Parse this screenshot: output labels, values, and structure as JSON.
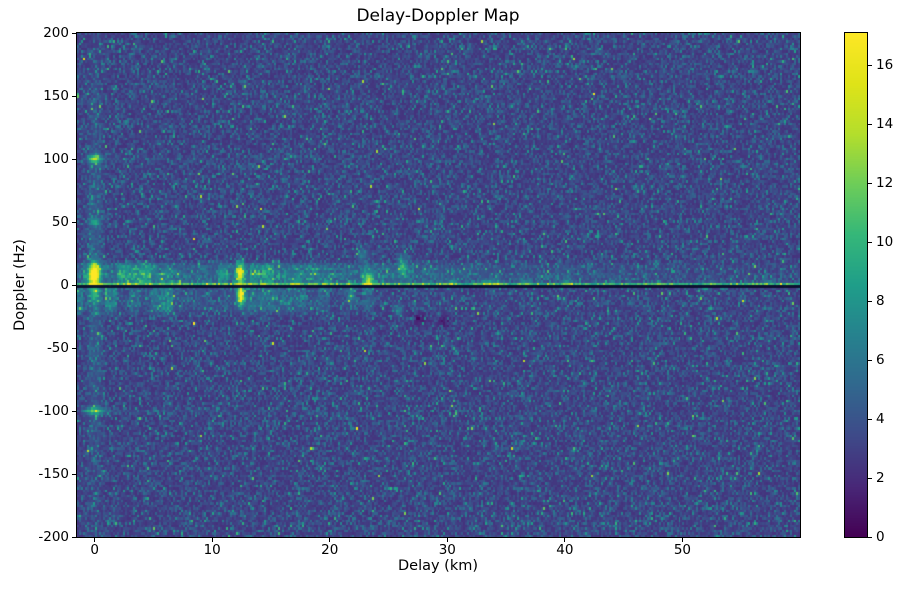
{
  "chart_data": {
    "type": "heatmap",
    "title": "Delay-Doppler Map",
    "xlabel": "Delay (km)",
    "ylabel": "Doppler (Hz)",
    "x_range": [
      -1.5,
      60
    ],
    "y_range": [
      -200,
      200
    ],
    "x_ticks": [
      0,
      10,
      20,
      30,
      40,
      50
    ],
    "y_ticks": [
      -200,
      -150,
      -100,
      -50,
      0,
      50,
      100,
      150,
      200
    ],
    "colorbar": {
      "vmin": 0,
      "vmax": 17.1,
      "ticks": [
        0,
        2,
        4,
        6,
        8,
        10,
        12,
        14,
        16
      ],
      "colormap": "viridis"
    },
    "grid": {
      "nx": 363,
      "ny": 202
    },
    "noise": {
      "seed": 42,
      "base": 2.2,
      "exp_scale": 1.35
    },
    "features": {
      "zero_line": {
        "doppler_hz": -0.7,
        "color": "#0a0c2a"
      },
      "bright_line": {
        "doppler_hz": 1.3,
        "half_width_hz": 1.0,
        "amplitude": 6.0
      },
      "vertical_stripe": {
        "delay_km": 0,
        "sigma_km": 0.45,
        "amplitude": 1.6
      },
      "upper_band": {
        "hz_lo": -0.5,
        "hz_hi": 19.5,
        "amplitude": 3.6
      },
      "lower_band": {
        "hz_lo": -26,
        "hz_hi": 0.5,
        "amplitude": 2.4
      },
      "doppler_tails": [
        {
          "hz": 100,
          "amplitude": 0.8,
          "km_end": 20
        },
        {
          "hz": -100,
          "amplitude": 1.0,
          "km_end": 25
        }
      ],
      "blobs": [
        {
          "km": 0,
          "hz": 9,
          "sx": 0.32,
          "sy": 6,
          "amp": 14
        },
        {
          "km": 0,
          "hz": -6,
          "sx": 0.3,
          "sy": 5,
          "amp": 5
        },
        {
          "km": 12.4,
          "hz": 10,
          "sx": 0.22,
          "sy": 5.5,
          "amp": 12
        },
        {
          "km": 12.45,
          "hz": -8,
          "sx": 0.22,
          "sy": 5.5,
          "amp": 13
        },
        {
          "km": 0,
          "hz": 100,
          "sx": 0.38,
          "sy": 2.2,
          "amp": 10
        },
        {
          "km": 0,
          "hz": 50,
          "sx": 0.3,
          "sy": 2.2,
          "amp": 5
        },
        {
          "km": 0,
          "hz": -100,
          "sx": 0.55,
          "sy": 1.8,
          "amp": 7.5
        },
        {
          "km": 23.3,
          "hz": 4,
          "sx": 0.28,
          "sy": 4,
          "amp": 8
        },
        {
          "km": 26.2,
          "hz": 15,
          "sx": 0.3,
          "sy": 6,
          "amp": 5
        },
        {
          "km": 22.8,
          "hz": 24,
          "sx": 0.35,
          "sy": 4,
          "amp": 3
        },
        {
          "km": 21.8,
          "hz": -8,
          "sx": 0.22,
          "sy": 4,
          "amp": 4
        },
        {
          "km": 25.8,
          "hz": -20,
          "sx": 0.28,
          "sy": 3,
          "amp": 3.5
        },
        {
          "km": 27.5,
          "hz": -27,
          "sx": 0.5,
          "sy": 3,
          "amp": -2.2
        },
        {
          "km": 29.8,
          "hz": -30,
          "sx": 0.4,
          "sy": 3,
          "amp": -1.8
        },
        {
          "km": 33.8,
          "hz": 1.5,
          "sx": 0.6,
          "sy": 2.5,
          "amp": 4
        },
        {
          "km": 36.6,
          "hz": 2,
          "sx": 0.3,
          "sy": 2.2,
          "amp": 3.2
        },
        {
          "km": 30.5,
          "hz": 2,
          "sx": 0.3,
          "sy": 2.5,
          "amp": 3.2
        },
        {
          "km": 40.2,
          "hz": 2,
          "sx": 0.3,
          "sy": 2.2,
          "amp": 3
        },
        {
          "km": 17,
          "hz": 2,
          "sx": 0.3,
          "sy": 2.5,
          "amp": 3
        },
        {
          "km": 44,
          "hz": 2,
          "sx": 0.25,
          "sy": 2,
          "amp": 2.4
        },
        {
          "km": 47.9,
          "hz": 2,
          "sx": 0.22,
          "sy": 2,
          "amp": 2.6
        },
        {
          "km": 52.5,
          "hz": 2,
          "sx": 0.22,
          "sy": 2,
          "amp": 2.2
        },
        {
          "km": 57,
          "hz": 2,
          "sx": 0.22,
          "sy": 2,
          "amp": 2
        }
      ]
    }
  },
  "colors": {
    "figure_background": "#ffffff",
    "axis": "#000000",
    "text": "#000000"
  }
}
